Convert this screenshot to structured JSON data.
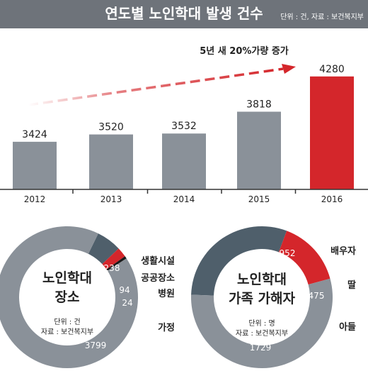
{
  "header": {
    "title": "연도별 노인학대 발생 건수",
    "source": "단위 : 건, 자료 : 보건복지부"
  },
  "colors": {
    "header_bg": "#6e737a",
    "bar": "#8a9199",
    "highlight": "#d4262b",
    "donut_base": "#8a9199",
    "donut_dark": "#4f5f6b",
    "donut_black": "#1a1a1a",
    "axis": "#333333"
  },
  "chart_data": [
    {
      "type": "bar",
      "categories": [
        "2012",
        "2013",
        "2014",
        "2015",
        "2016"
      ],
      "values": [
        3424,
        3520,
        3532,
        3818,
        4280
      ],
      "highlight_index": 4,
      "annotation": "5년 새 20%가량 증가",
      "ylim": [
        2800,
        4380
      ]
    },
    {
      "type": "pie",
      "title_lines": [
        "노인학대",
        "장소"
      ],
      "unit": "단위 : 건",
      "source": "자료 : 보건복지부",
      "labels": [
        "생활시설",
        "공공장소",
        "병원",
        "가정"
      ],
      "values": [
        238,
        94,
        24,
        3799
      ],
      "colors": [
        "#4f5f6b",
        "#d4262b",
        "#1a1a1a",
        "#8a9199"
      ]
    },
    {
      "type": "pie",
      "title_lines": [
        "노인학대",
        "가족 가해자"
      ],
      "unit": "단위 : 명",
      "source": "자료 : 보건복지부",
      "labels": [
        "배우자",
        "딸",
        "아들"
      ],
      "values": [
        952,
        475,
        1729
      ],
      "colors": [
        "#4f5f6b",
        "#d4262b",
        "#8a9199"
      ]
    }
  ]
}
